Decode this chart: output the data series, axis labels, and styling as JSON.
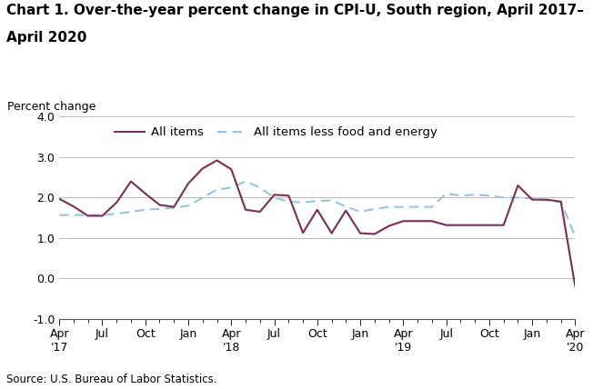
{
  "title_line1": "Chart 1. Over-the-year percent change in CPI-U, South region, April 2017–",
  "title_line2": "April 2020",
  "ylabel": "Percent change",
  "source": "Source: U.S. Bureau of Labor Statistics.",
  "ylim": [
    -1.0,
    4.0
  ],
  "yticks": [
    -1.0,
    0.0,
    1.0,
    2.0,
    3.0,
    4.0
  ],
  "x_tick_positions": [
    0,
    3,
    6,
    9,
    12,
    15,
    18,
    21,
    24,
    27,
    30,
    33,
    36
  ],
  "x_tick_labels": [
    "Apr\n'17",
    "Jul",
    "Oct",
    "Jan",
    "Apr\n'18",
    "Jul",
    "Oct",
    "Jan",
    "Apr\n'19",
    "Jul",
    "Oct",
    "Jan",
    "Apr\n'20"
  ],
  "all_items": [
    1.97,
    1.78,
    1.55,
    1.55,
    1.88,
    2.4,
    2.1,
    1.82,
    1.77,
    2.35,
    2.72,
    2.92,
    2.7,
    1.7,
    1.65,
    2.07,
    2.05,
    1.13,
    1.7,
    1.12,
    1.68,
    1.12,
    1.1,
    1.3,
    1.42,
    1.42,
    1.42,
    1.32,
    1.32,
    1.32,
    1.32,
    1.32,
    2.3,
    1.95,
    1.95,
    1.9,
    -0.2
  ],
  "core": [
    1.57,
    1.57,
    1.57,
    1.57,
    1.6,
    1.65,
    1.7,
    1.72,
    1.75,
    1.8,
    2.0,
    2.2,
    2.25,
    2.4,
    2.25,
    2.0,
    1.9,
    1.88,
    1.92,
    1.93,
    1.78,
    1.65,
    1.72,
    1.77,
    1.77,
    1.77,
    1.77,
    2.1,
    2.05,
    2.07,
    2.05,
    2.0,
    2.0,
    1.98,
    1.93,
    1.9,
    1.04
  ],
  "all_items_color": "#7B2D52",
  "core_color": "#92C5E8",
  "grid_color": "#bbbbbb",
  "legend_fontsize": 9.5,
  "tick_fontsize": 9,
  "title_fontsize": 11,
  "source_fontsize": 8.5
}
